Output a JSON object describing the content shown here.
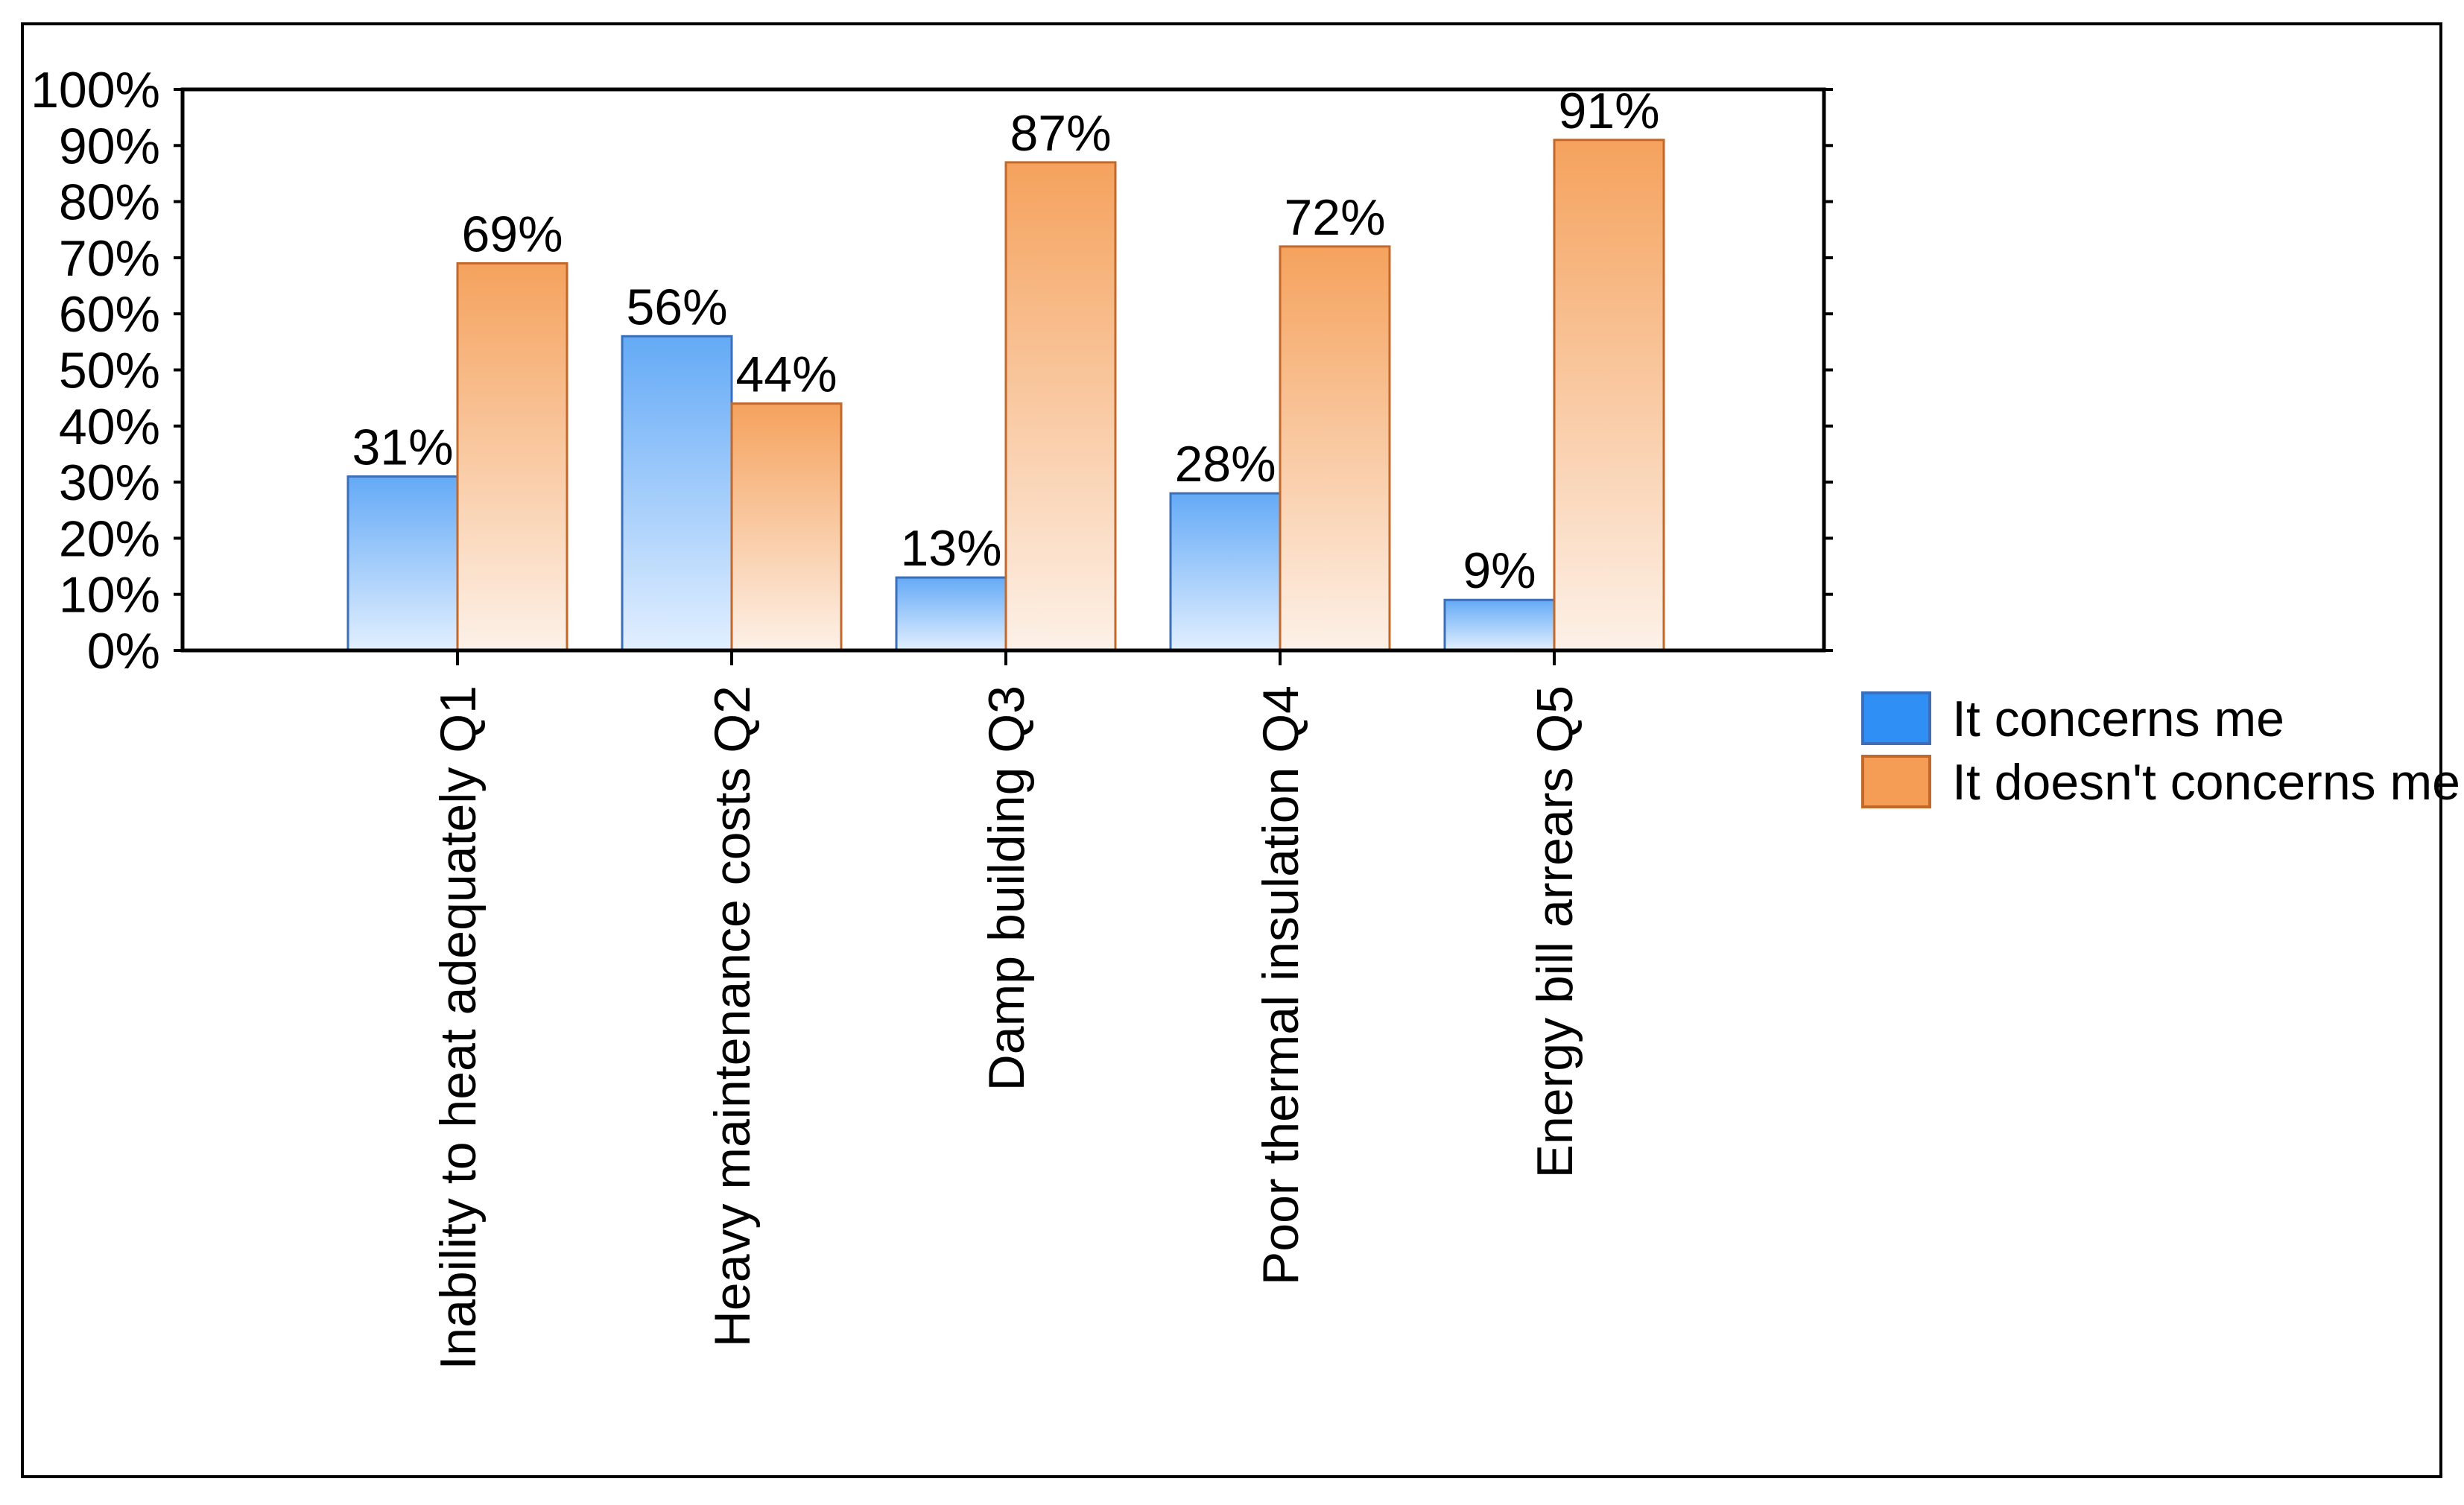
{
  "chart_data": {
    "type": "bar",
    "title": "",
    "xlabel": "",
    "ylabel": "",
    "categories": [
      "Inability to heat adequately Q1",
      "Heavy maintenance costs Q2",
      "Damp building Q3",
      "Poor thermal insulation Q4",
      "Energy bill arrears Q5"
    ],
    "series": [
      {
        "name": "It concerns me",
        "values": [
          31,
          56,
          13,
          28,
          9
        ],
        "color": "#2f8ff5",
        "fill_top": "#64aaf6",
        "fill_bottom": "#e2efff",
        "stroke": "#3d6fb8"
      },
      {
        "name": "It doesn't concerns me",
        "values": [
          69,
          44,
          87,
          72,
          91
        ],
        "color": "#f59c55",
        "fill_top": "#f5a25d",
        "fill_bottom": "#fdf1e8",
        "stroke": "#c2682b"
      }
    ],
    "data_labels": [
      [
        "31%",
        "56%",
        "13%",
        "28%",
        "9%"
      ],
      [
        "69%",
        "44%",
        "87%",
        "72%",
        "91%"
      ]
    ],
    "ylim": [
      0,
      100
    ],
    "yticks": [
      0,
      10,
      20,
      30,
      40,
      50,
      60,
      70,
      80,
      90,
      100
    ],
    "ytick_labels": [
      "0%",
      "10%",
      "20%",
      "30%",
      "40%",
      "50%",
      "60%",
      "70%",
      "80%",
      "90%",
      "100%"
    ],
    "grid": false,
    "legend_position": "right"
  }
}
